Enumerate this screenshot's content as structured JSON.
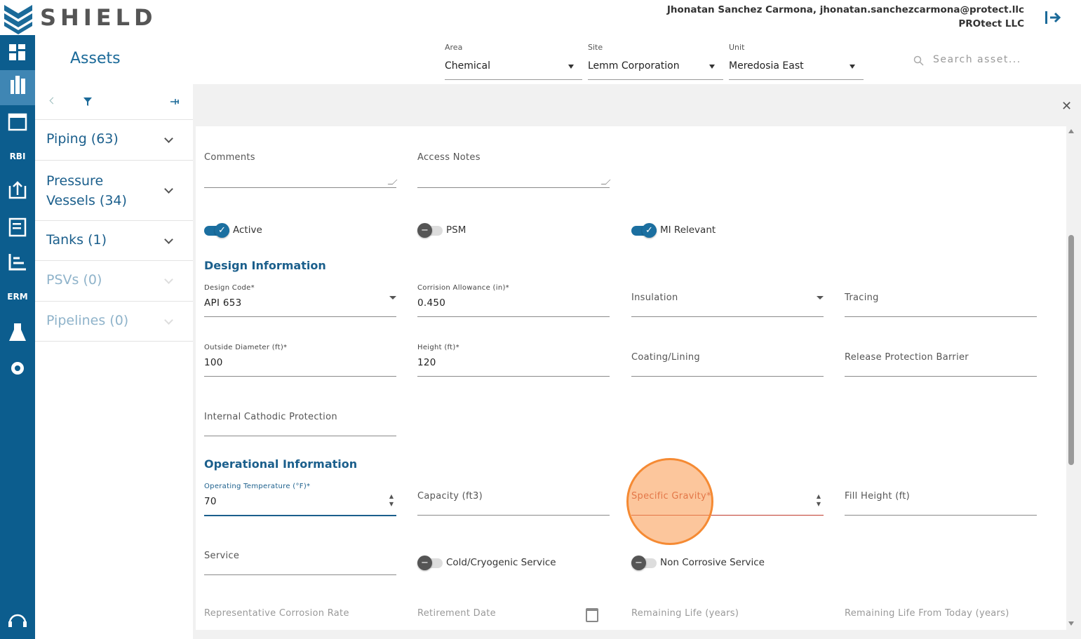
{
  "header": {
    "logo": "SHIELD",
    "user": "Jhonatan Sanchez Carmona, jhonatan.sanchezcarmona@protect.llc",
    "company": "PROtect LLC"
  },
  "nav": [
    "RBI",
    "ERM"
  ],
  "title": "Assets",
  "filters": [
    {
      "label": "Area",
      "value": "Chemical"
    },
    {
      "label": "Site",
      "value": "Lemm Corporation"
    },
    {
      "label": "Unit",
      "value": "Meredosia East"
    }
  ],
  "search": "Search asset...",
  "asset_groups": [
    "Piping (63)",
    "Pressure Vessels (34)",
    "Tanks (1)",
    "PSVs (0)",
    "Pipelines (0)"
  ],
  "form": {
    "notes": [
      "Comments",
      "Access Notes"
    ],
    "toggles": [
      "Active",
      "PSM",
      "MI Relevant"
    ],
    "design": {
      "heading": "Design Information",
      "fields": [
        {
          "label": "Design Code*",
          "value": "API 653"
        },
        {
          "label": "Corrision Allowance (in)*",
          "value": "0.450"
        },
        {
          "label": "Insulation"
        },
        {
          "label": "Tracing"
        },
        {
          "label": "Outside Diameter (ft)*",
          "value": "100"
        },
        {
          "label": "Height (ft)*",
          "value": "120"
        },
        {
          "label": "Coating/Lining"
        },
        {
          "label": "Release Protection Barrier"
        },
        {
          "label": "Internal Cathodic Protection"
        }
      ]
    },
    "operational": {
      "heading": "Operational Information",
      "fields": [
        {
          "label": "Operating Temperature (°F)*",
          "value": "70"
        },
        {
          "label": "Capacity (ft3)"
        },
        {
          "label": "Specific Gravity*"
        },
        {
          "label": "Fill Height (ft)"
        },
        {
          "label": "Service"
        }
      ],
      "toggles": [
        "Cold/Cryogenic Service",
        "Non Corrosive Service"
      ],
      "computed": [
        "Representative Corrosion Rate",
        "Retirement Date",
        "Remaining Life (years)",
        "Remaining Life From Today (years)"
      ]
    }
  }
}
